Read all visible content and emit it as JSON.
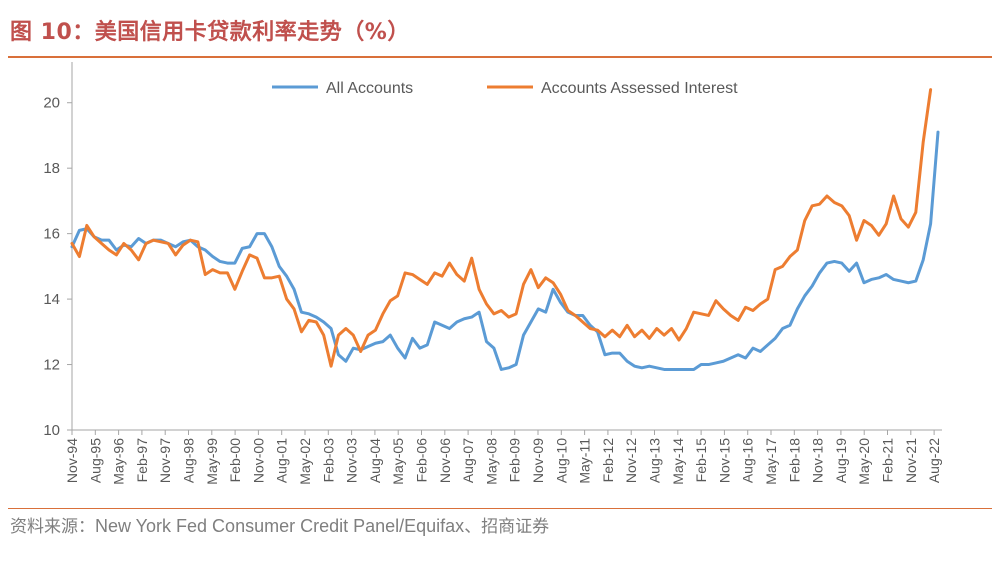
{
  "header": {
    "title": "图 10：美国信用卡贷款利率走势（%）"
  },
  "footer": {
    "source_label": "资料来源：",
    "source_text": "New York Fed Consumer Credit Panel/Equifax",
    "source_suffix": "、招商证券"
  },
  "colors": {
    "all_accounts": "#5B9BD5",
    "assessed_interest": "#ED7D31",
    "accent": "#C0504D",
    "rule": "#D9703A"
  },
  "chart_data": {
    "type": "line",
    "title": "",
    "xlabel": "",
    "ylabel": "",
    "ylim": [
      10,
      21
    ],
    "yticks": [
      10,
      12,
      14,
      16,
      18,
      20
    ],
    "grid": false,
    "legend_position": "top",
    "x_tick_labels": [
      "Nov-94",
      "Aug-95",
      "May-96",
      "Feb-97",
      "Nov-97",
      "Aug-98",
      "May-99",
      "Feb-00",
      "Nov-00",
      "Aug-01",
      "May-02",
      "Feb-03",
      "Nov-03",
      "Aug-04",
      "May-05",
      "Feb-06",
      "Nov-06",
      "Aug-07",
      "May-08",
      "Feb-09",
      "Nov-09",
      "Aug-10",
      "May-11",
      "Feb-12",
      "Nov-12",
      "Aug-13",
      "May-14",
      "Feb-15",
      "Nov-15",
      "Aug-16",
      "May-17",
      "Feb-18",
      "Nov-18",
      "Aug-19",
      "May-20",
      "Feb-21",
      "Nov-21",
      "Aug-22"
    ],
    "series": [
      {
        "name": "All Accounts",
        "values": [
          15.6,
          16.1,
          16.15,
          15.9,
          15.8,
          15.8,
          15.5,
          15.65,
          15.6,
          15.85,
          15.7,
          15.8,
          15.8,
          15.7,
          15.6,
          15.75,
          15.8,
          15.6,
          15.5,
          15.3,
          15.15,
          15.1,
          15.1,
          15.55,
          15.6,
          16.0,
          16.0,
          15.6,
          15.0,
          14.7,
          14.3,
          13.6,
          13.55,
          13.45,
          13.3,
          13.1,
          12.3,
          12.1,
          12.5,
          12.45,
          12.55,
          12.65,
          12.7,
          12.9,
          12.5,
          12.2,
          12.8,
          12.5,
          12.6,
          13.3,
          13.2,
          13.1,
          13.3,
          13.4,
          13.45,
          13.6,
          12.7,
          12.5,
          11.85,
          11.9,
          12.0,
          12.9,
          13.3,
          13.7,
          13.6,
          14.3,
          13.9,
          13.6,
          13.5,
          13.5,
          13.2,
          13.0,
          12.3,
          12.35,
          12.35,
          12.1,
          11.95,
          11.9,
          11.95,
          11.9,
          11.85,
          11.85,
          11.85,
          11.85,
          11.85,
          12.0,
          12.0,
          12.05,
          12.1,
          12.2,
          12.3,
          12.2,
          12.5,
          12.4,
          12.6,
          12.8,
          13.1,
          13.2,
          13.7,
          14.1,
          14.4,
          14.8,
          15.1,
          15.15,
          15.1,
          14.85,
          15.1,
          14.5,
          14.6,
          14.65,
          14.75,
          14.6,
          14.55,
          14.5,
          14.55,
          15.2,
          16.3,
          19.1
        ]
      },
      {
        "name": "Accounts Assessed Interest",
        "values": [
          15.7,
          15.3,
          16.25,
          15.9,
          15.7,
          15.5,
          15.35,
          15.7,
          15.5,
          15.2,
          15.7,
          15.8,
          15.75,
          15.7,
          15.35,
          15.65,
          15.8,
          15.75,
          14.75,
          14.9,
          14.8,
          14.8,
          14.3,
          14.85,
          15.35,
          15.25,
          14.65,
          14.65,
          14.7,
          14.0,
          13.7,
          13.0,
          13.35,
          13.3,
          12.9,
          11.95,
          12.9,
          13.1,
          12.9,
          12.4,
          12.9,
          13.05,
          13.55,
          13.95,
          14.1,
          14.8,
          14.75,
          14.6,
          14.45,
          14.8,
          14.7,
          15.1,
          14.75,
          14.55,
          15.25,
          14.3,
          13.85,
          13.55,
          13.65,
          13.45,
          13.55,
          14.45,
          14.9,
          14.35,
          14.65,
          14.5,
          14.15,
          13.65,
          13.5,
          13.3,
          13.1,
          13.05,
          12.85,
          13.05,
          12.85,
          13.2,
          12.85,
          13.05,
          12.8,
          13.1,
          12.9,
          13.1,
          12.75,
          13.1,
          13.6,
          13.55,
          13.5,
          13.95,
          13.7,
          13.5,
          13.35,
          13.75,
          13.65,
          13.85,
          14.0,
          14.9,
          15.0,
          15.3,
          15.5,
          16.4,
          16.85,
          16.9,
          17.15,
          16.95,
          16.85,
          16.55,
          15.8,
          16.4,
          16.25,
          15.95,
          16.3,
          17.15,
          16.45,
          16.2,
          16.65,
          18.8,
          20.4
        ]
      }
    ]
  }
}
